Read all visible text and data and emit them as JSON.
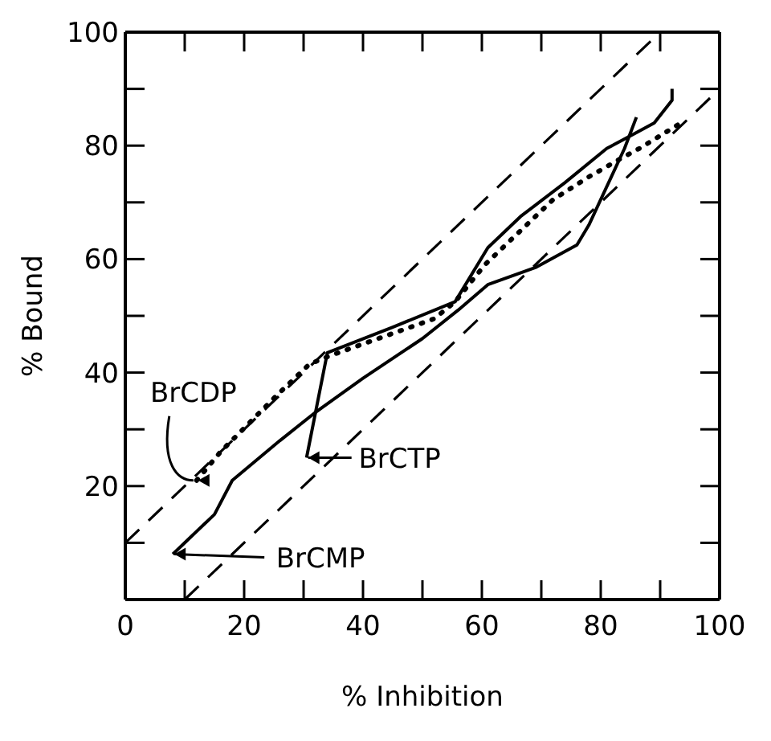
{
  "chart_data": {
    "type": "line",
    "xlabel": "% Inhibition",
    "ylabel": "% Bound",
    "xlim": [
      0,
      100
    ],
    "ylim": [
      0,
      100
    ],
    "xticks": [
      0,
      {
        "value": 10,
        "label": null
      },
      20,
      {
        "value": 30,
        "label": null
      },
      40,
      {
        "value": 50,
        "label": null
      },
      60,
      {
        "value": 70,
        "label": null
      },
      80,
      {
        "value": 90,
        "label": null
      },
      100
    ],
    "yticks": [
      {
        "value": 10,
        "label": null
      },
      20,
      {
        "value": 30,
        "label": null
      },
      40,
      {
        "value": 50,
        "label": null
      },
      60,
      {
        "value": 70,
        "label": null
      },
      80,
      {
        "value": 90,
        "label": null
      },
      100
    ],
    "marker": "none",
    "legend": "bottom left",
    "series": [
      {
        "name": "BrCDP",
        "color": "#000000",
        "line_style": "dotted",
        "x": [
          12,
          16,
          25.5,
          31,
          34.5,
          52,
          55.5,
          60.5,
          66.5,
          72,
          78,
          83,
          86.5,
          93.5
        ],
        "values": [
          21,
          26,
          36,
          41.5,
          43,
          49.5,
          52.5,
          59,
          65,
          70.5,
          74.5,
          77.5,
          79.5,
          84
        ]
      },
      {
        "name": "BrCTP",
        "color": "#000000",
        "line_style": "solid",
        "x": [
          30.5,
          34,
          45,
          55.5,
          61,
          66.5,
          74,
          81,
          85.5,
          89,
          92,
          92
        ],
        "values": [
          25,
          43.5,
          48,
          52.5,
          62,
          67.5,
          73.5,
          79.5,
          82,
          84,
          88,
          90
        ]
      },
      {
        "name": "BrCMP",
        "color": "#000000",
        "line_style": "solid",
        "x": [
          8,
          15,
          18,
          26,
          32,
          40,
          50,
          56,
          61,
          69,
          76,
          78,
          84,
          86
        ],
        "values": [
          8,
          15,
          21,
          28,
          33,
          39,
          46,
          51,
          55.5,
          58.5,
          62.5,
          66,
          79.5,
          85
        ]
      },
      {
        "color": "#000000",
        "line_style": "dashed",
        "x": [
          0,
          90
        ],
        "values": [
          10,
          100
        ]
      },
      {
        "color": "#000000",
        "line_style": "dashed",
        "x": [
          10,
          100
        ],
        "values": [
          0,
          90
        ]
      }
    ]
  }
}
